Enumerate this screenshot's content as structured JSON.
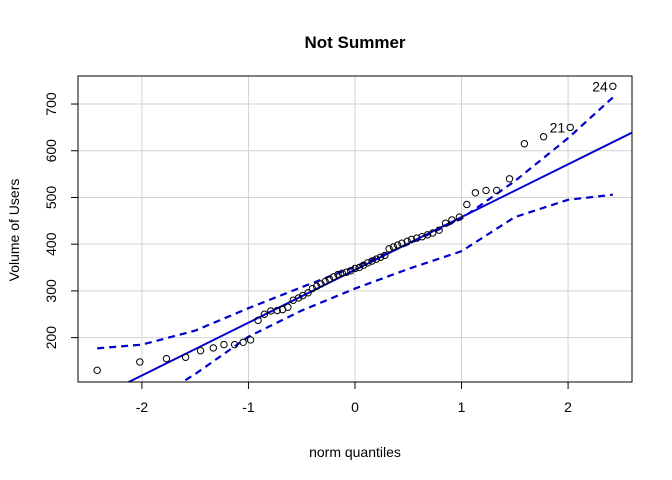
{
  "chart_data": {
    "type": "scatter",
    "title": "Not Summer",
    "xlabel": "norm quantiles",
    "ylabel": "Volume of Users",
    "xlim": [
      -2.6,
      2.6
    ],
    "ylim": [
      105,
      760
    ],
    "xticks": [
      -2,
      -1,
      0,
      1,
      2
    ],
    "yticks": [
      200,
      300,
      400,
      500,
      600,
      700
    ],
    "grid": true,
    "colors": {
      "points": "#000000",
      "reference": "#0000cd",
      "grid": "#d3d3d3",
      "frame": "#000000"
    },
    "points": [
      [
        -2.42,
        130
      ],
      [
        -2.02,
        148
      ],
      [
        -1.77,
        155
      ],
      [
        -1.59,
        158
      ],
      [
        -1.45,
        172
      ],
      [
        -1.33,
        178
      ],
      [
        -1.23,
        185
      ],
      [
        -1.13,
        185
      ],
      [
        -1.05,
        190
      ],
      [
        -0.98,
        195
      ],
      [
        -0.91,
        237
      ],
      [
        -0.85,
        250
      ],
      [
        -0.79,
        257
      ],
      [
        -0.73,
        258
      ],
      [
        -0.68,
        260
      ],
      [
        -0.63,
        265
      ],
      [
        -0.58,
        280
      ],
      [
        -0.53,
        285
      ],
      [
        -0.49,
        290
      ],
      [
        -0.44,
        296
      ],
      [
        -0.4,
        305
      ],
      [
        -0.36,
        310
      ],
      [
        -0.32,
        315
      ],
      [
        -0.28,
        320
      ],
      [
        -0.24,
        325
      ],
      [
        -0.2,
        330
      ],
      [
        -0.16,
        335
      ],
      [
        -0.12,
        338
      ],
      [
        -0.08,
        340
      ],
      [
        -0.04,
        343
      ],
      [
        0.0,
        348
      ],
      [
        0.04,
        350
      ],
      [
        0.08,
        355
      ],
      [
        0.12,
        360
      ],
      [
        0.16,
        364
      ],
      [
        0.2,
        368
      ],
      [
        0.24,
        372
      ],
      [
        0.28,
        376
      ],
      [
        0.32,
        390
      ],
      [
        0.36,
        394
      ],
      [
        0.4,
        398
      ],
      [
        0.44,
        402
      ],
      [
        0.49,
        406
      ],
      [
        0.53,
        410
      ],
      [
        0.58,
        413
      ],
      [
        0.63,
        416
      ],
      [
        0.68,
        420
      ],
      [
        0.73,
        424
      ],
      [
        0.79,
        430
      ],
      [
        0.85,
        445
      ],
      [
        0.91,
        452
      ],
      [
        0.98,
        458
      ],
      [
        1.05,
        485
      ],
      [
        1.13,
        510
      ],
      [
        1.23,
        515
      ],
      [
        1.33,
        515
      ],
      [
        1.45,
        540
      ],
      [
        1.59,
        615
      ],
      [
        1.77,
        630
      ],
      [
        2.02,
        650
      ],
      [
        2.42,
        738
      ]
    ],
    "point_labels": [
      {
        "text": "21",
        "point_index": 59
      },
      {
        "text": "24",
        "point_index": 60
      }
    ],
    "reference_line": {
      "intercept": 345,
      "slope": 113
    },
    "confidence_band": {
      "x": [
        -2.42,
        -2.0,
        -1.5,
        -1.0,
        -0.5,
        0.0,
        0.5,
        1.0,
        1.5,
        2.0,
        2.42
      ],
      "upper": [
        177,
        185,
        215,
        263,
        308,
        352,
        400,
        455,
        535,
        627,
        714
      ],
      "lower": [
        -24,
        51,
        122,
        202,
        258,
        305,
        347,
        385,
        458,
        495,
        506
      ]
    }
  }
}
